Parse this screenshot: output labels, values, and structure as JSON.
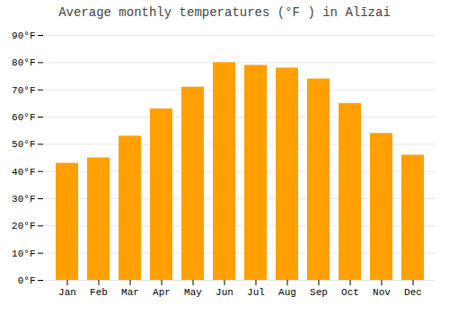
{
  "chart_data": {
    "type": "bar",
    "title": "Average monthly temperatures (°F ) in Alīzai",
    "categories": [
      "Jan",
      "Feb",
      "Mar",
      "Apr",
      "May",
      "Jun",
      "Jul",
      "Aug",
      "Sep",
      "Oct",
      "Nov",
      "Dec"
    ],
    "values": [
      43,
      45,
      53,
      63,
      71,
      80,
      79,
      78,
      74,
      65,
      54,
      46
    ],
    "color": "#FFA000",
    "ylim": [
      0,
      90
    ],
    "yticks": [
      {
        "value": 0,
        "label": "0°F"
      },
      {
        "value": 10,
        "label": "10°F"
      },
      {
        "value": 20,
        "label": "20°F"
      },
      {
        "value": 30,
        "label": "30°F"
      },
      {
        "value": 40,
        "label": "40°F"
      },
      {
        "value": 50,
        "label": "50°F"
      },
      {
        "value": 60,
        "label": "60°F"
      },
      {
        "value": 70,
        "label": "70°F"
      },
      {
        "value": 80,
        "label": "80°F"
      },
      {
        "value": 90,
        "label": "90°F"
      }
    ],
    "grid": true
  }
}
